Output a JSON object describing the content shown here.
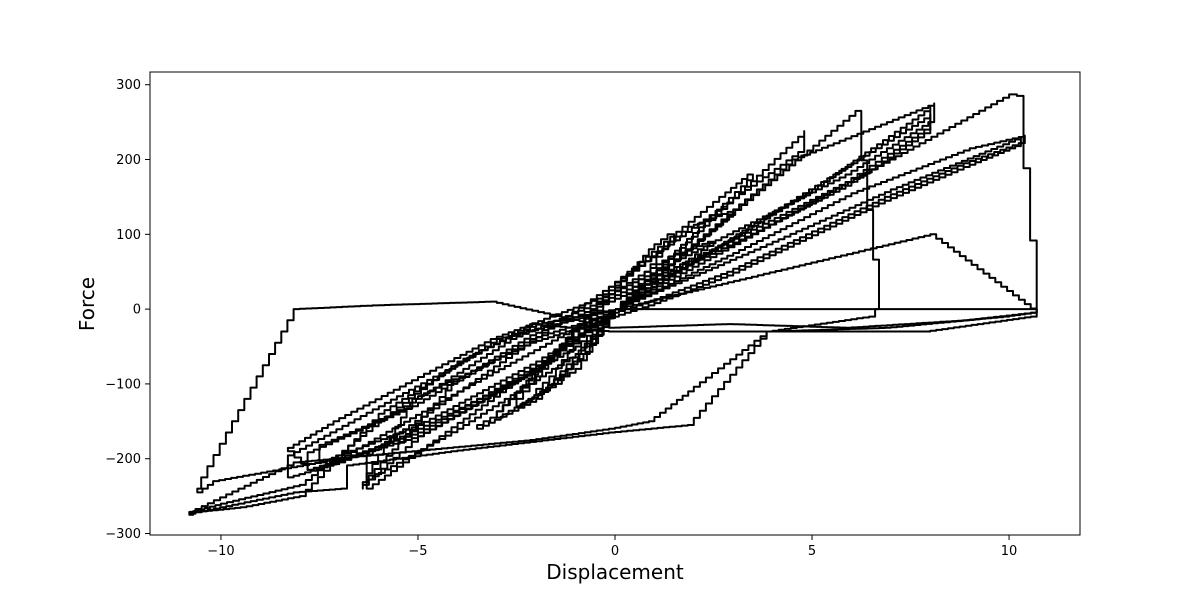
{
  "chart_data": {
    "type": "line",
    "title": "",
    "xlabel": "Displacement",
    "ylabel": "Force",
    "xlim": [
      -11.8,
      11.8
    ],
    "ylim": [
      -302,
      317
    ],
    "x_ticks": [
      -10,
      -5,
      0,
      5,
      10
    ],
    "x_tick_labels": [
      "−10",
      "−5",
      "0",
      "5",
      "10"
    ],
    "y_ticks": [
      -300,
      -200,
      -100,
      0,
      100,
      200,
      300
    ],
    "y_tick_labels": [
      "−300",
      "−200",
      "−100",
      "0",
      "100",
      "200",
      "300"
    ],
    "grid": false,
    "legend": "none",
    "line_color": "#000000",
    "series": [
      {
        "x": [
          0,
          4.8,
          4.8,
          0,
          -6.3,
          -6.3,
          0
        ],
        "y": [
          0,
          238,
          210,
          30,
          -200,
          -240,
          0
        ]
      },
      {
        "x": [
          0,
          6.1,
          6.7,
          6.6,
          4.0,
          0,
          -2.0,
          -8.3,
          -8.3,
          -7.0,
          -5.0,
          -2.0,
          0
        ],
        "y": [
          0,
          265,
          0,
          -10,
          -30,
          -30,
          -20,
          -200,
          -225,
          -205,
          -160,
          -80,
          0
        ]
      },
      {
        "x": [
          0,
          4.5,
          8.1,
          8.1,
          6.0,
          3.0,
          0,
          -3.0,
          -7.0,
          -8.3,
          -7.8,
          -5.0,
          -2.0,
          0
        ],
        "y": [
          0,
          200,
          275,
          250,
          180,
          100,
          20,
          -40,
          -150,
          -190,
          -215,
          -170,
          -80,
          0
        ]
      },
      {
        "x": [
          0,
          5.0,
          8.0,
          8.0,
          6.0,
          3.0,
          0,
          -2.5,
          -5.5,
          -7.5,
          -7.5,
          -5.0,
          -2.0,
          0
        ],
        "y": [
          0,
          160,
          270,
          240,
          170,
          90,
          15,
          -40,
          -140,
          -185,
          -205,
          -155,
          -70,
          0
        ]
      },
      {
        "x": [
          0,
          4.0,
          8.0,
          8.0,
          6.0,
          3.0,
          0,
          -2.0,
          -5.0,
          -7.8,
          -7.8,
          -5.0,
          -2.0,
          0
        ],
        "y": [
          0,
          130,
          260,
          235,
          165,
          85,
          10,
          -35,
          -130,
          -195,
          -215,
          -165,
          -75,
          0
        ]
      },
      {
        "x": [
          0,
          10.0,
          10.2,
          10.7,
          9.0,
          6.0,
          3.0,
          0,
          -3.0,
          -6.0,
          -8.0,
          -10.5,
          -10.6,
          -10.2,
          -7.0,
          -4.0,
          -1.0,
          0
        ],
        "y": [
          0,
          287,
          285,
          -5,
          -15,
          -25,
          -20,
          -25,
          10,
          5,
          0,
          -240,
          -245,
          -230,
          -200,
          -110,
          -25,
          0
        ]
      },
      {
        "x": [
          0,
          3.0,
          6.0,
          9.0,
          10.4,
          10.4,
          9.0,
          7.0,
          5.0,
          3.0,
          1.0,
          -2.0,
          -4.0,
          -6.4,
          -6.4,
          -5.0,
          -3.0,
          -1.0,
          0
        ],
        "y": [
          0,
          75,
          155,
          215,
          232,
          222,
          195,
          150,
          100,
          50,
          10,
          -40,
          -100,
          -240,
          -235,
          -170,
          -110,
          -50,
          0
        ]
      },
      {
        "x": [
          0,
          4.0,
          7.0,
          10.3,
          10.3,
          9.0,
          7.0,
          5.0,
          3.0,
          1.0,
          -2.0,
          -5.0,
          -6.3,
          -6.3,
          -4.0,
          -1.0,
          0
        ],
        "y": [
          0,
          90,
          160,
          230,
          218,
          190,
          145,
          95,
          45,
          5,
          -45,
          -120,
          -232,
          -228,
          -160,
          -60,
          0
        ]
      },
      {
        "x": [
          0,
          10.6,
          10.7,
          10.0,
          7.0,
          4.0,
          2.0,
          1.0,
          0,
          -2.0,
          -5.0,
          -8.0,
          -10.8,
          -10.7,
          -10.0,
          -8.0,
          -6.0,
          -4.0,
          -2.0,
          0
        ],
        "y": [
          0,
          0,
          -5,
          -10,
          -25,
          -30,
          -110,
          -150,
          -160,
          -175,
          -190,
          -205,
          -275,
          -270,
          -260,
          -235,
          -150,
          -70,
          -20,
          0
        ]
      },
      {
        "x": [
          0,
          8.0,
          10.7,
          10.7,
          8.0,
          4.0,
          2.0,
          0,
          -4.0,
          -6.8,
          -6.8,
          -8.0,
          -10.8,
          -10.8,
          -9.5,
          -8.0,
          -6.0,
          -3.0,
          0
        ],
        "y": [
          0,
          100,
          -5,
          -10,
          -30,
          -30,
          -155,
          -165,
          -190,
          -210,
          -240,
          -245,
          -275,
          -272,
          -265,
          -250,
          -140,
          -40,
          0
        ]
      },
      {
        "x": [
          0,
          2.5,
          1.5,
          0,
          -3.0,
          -3.5,
          -2.0,
          0
        ],
        "y": [
          0,
          90,
          70,
          20,
          -145,
          -160,
          -120,
          0
        ]
      },
      {
        "x": [
          0,
          3.0,
          2.0,
          0,
          -2.5,
          -3.0,
          -1.5,
          0
        ],
        "y": [
          0,
          130,
          110,
          25,
          -120,
          -145,
          -100,
          0
        ]
      },
      {
        "x": [
          0,
          3.5,
          2.8,
          0,
          -2.0,
          -2.5,
          -1.0,
          0
        ],
        "y": [
          0,
          180,
          150,
          30,
          -100,
          -130,
          -80,
          0
        ]
      },
      {
        "x": [
          0,
          1.5,
          1.0,
          0,
          -1.5,
          -2.0,
          -0.8,
          0
        ],
        "y": [
          0,
          100,
          80,
          20,
          -90,
          -115,
          -60,
          0
        ]
      }
    ]
  }
}
